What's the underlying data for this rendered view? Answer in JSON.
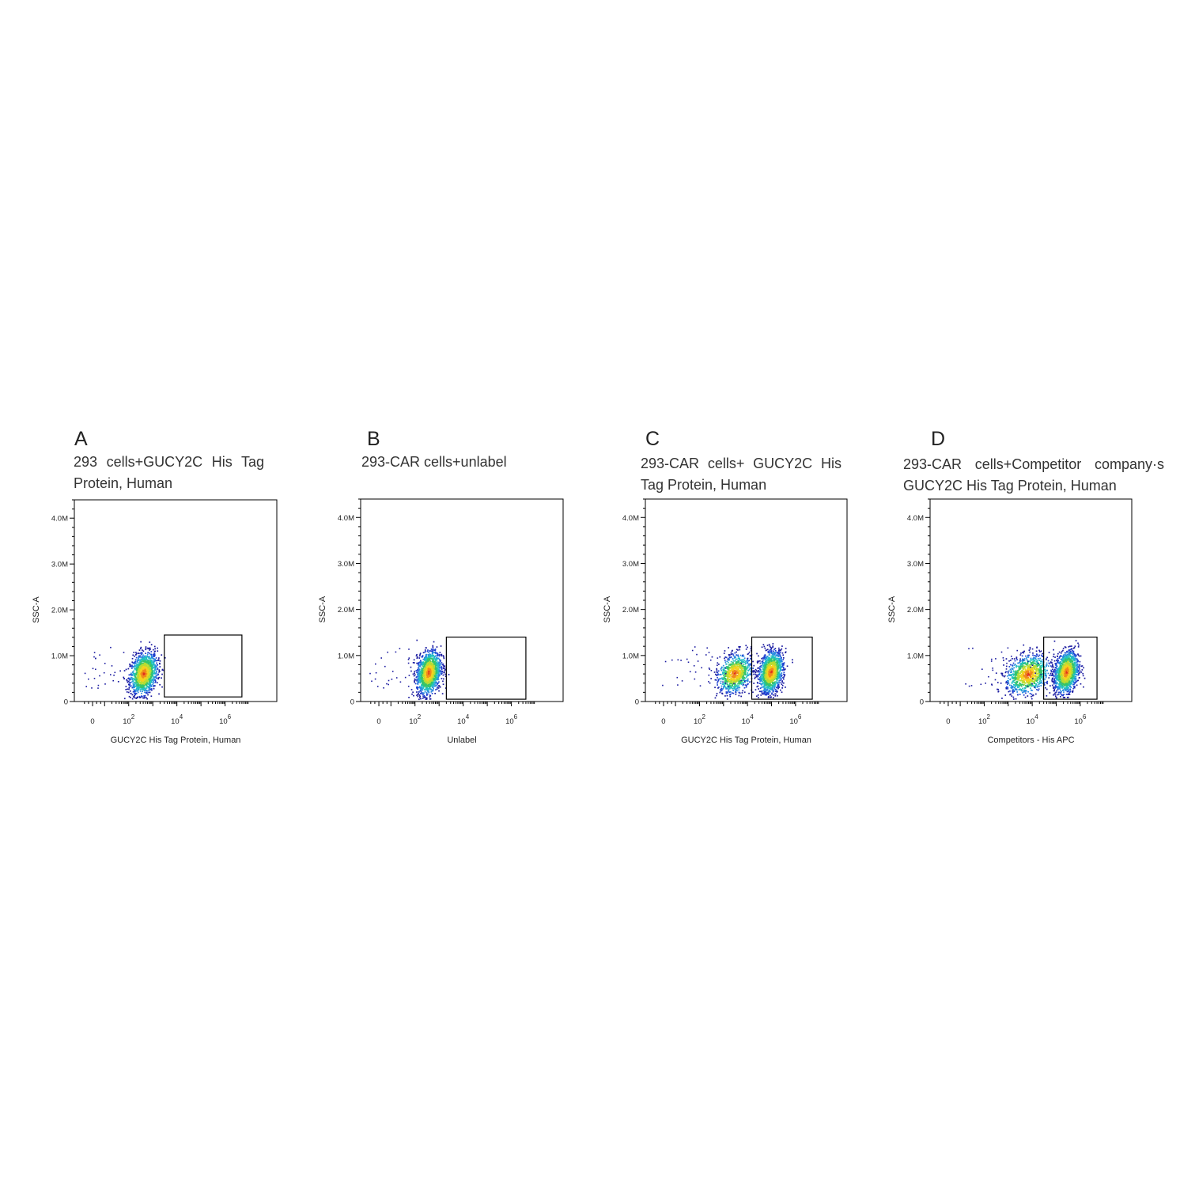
{
  "chart_data": [
    {
      "type": "scatter",
      "panel": "A",
      "title": "293 cells+GUCY2C His Tag Protein, Human",
      "xlabel": "GUCY2C His Tag Protein, Human",
      "ylabel": "SSC-A",
      "xscale": "biexponential",
      "yticks": [
        "0",
        "1.0M",
        "2.0M",
        "3.0M",
        "4.0M"
      ],
      "ylim": [
        0,
        4400000
      ],
      "xticks": [
        {
          "base": "0"
        },
        {
          "base": "10",
          "exp": "2"
        },
        {
          "base": "10",
          "exp": "4"
        },
        {
          "base": "10",
          "exp": "6"
        }
      ],
      "gate": {
        "x_range": [
          3000,
          5000000
        ],
        "y_range": [
          100000,
          1450000
        ]
      },
      "populations": [
        {
          "x_center_log10": 2.6,
          "x_spread_log10": 0.28,
          "y_center": 620000,
          "y_spread": 220000,
          "count": 1400
        }
      ]
    },
    {
      "type": "scatter",
      "panel": "B",
      "title": "293-CAR cells+unlabel",
      "xlabel": "Unlabel",
      "ylabel": "SSC-A",
      "xscale": "biexponential",
      "yticks": [
        "0",
        "1.0M",
        "2.0M",
        "3.0M",
        "4.0M"
      ],
      "ylim": [
        0,
        4400000
      ],
      "xticks": [
        {
          "base": "0"
        },
        {
          "base": "10",
          "exp": "2"
        },
        {
          "base": "10",
          "exp": "4"
        },
        {
          "base": "10",
          "exp": "6"
        }
      ],
      "gate": {
        "x_range": [
          2000,
          4000000
        ],
        "y_range": [
          50000,
          1400000
        ]
      },
      "populations": [
        {
          "x_center_log10": 2.55,
          "x_spread_log10": 0.25,
          "y_center": 640000,
          "y_spread": 230000,
          "count": 1400
        }
      ]
    },
    {
      "type": "scatter",
      "panel": "C",
      "title": "293-CAR cells+ GUCY2C His Tag Protein, Human",
      "xlabel": "GUCY2C His Tag Protein, Human",
      "ylabel": "SSC-A",
      "xscale": "biexponential",
      "yticks": [
        "0",
        "1.0M",
        "2.0M",
        "3.0M",
        "4.0M"
      ],
      "ylim": [
        0,
        4400000
      ],
      "xticks": [
        {
          "base": "0"
        },
        {
          "base": "10",
          "exp": "2"
        },
        {
          "base": "10",
          "exp": "4"
        },
        {
          "base": "10",
          "exp": "6"
        }
      ],
      "gate": {
        "x_range": [
          15000,
          5000000
        ],
        "y_range": [
          50000,
          1400000
        ]
      },
      "populations": [
        {
          "x_center_log10": 3.45,
          "x_spread_log10": 0.35,
          "y_center": 620000,
          "y_spread": 200000,
          "count": 900
        },
        {
          "x_center_log10": 4.95,
          "x_spread_log10": 0.25,
          "y_center": 650000,
          "y_spread": 220000,
          "count": 1300
        }
      ]
    },
    {
      "type": "scatter",
      "panel": "D",
      "title": "293-CAR cells+Competitor company·s GUCY2C His Tag Protein, Human",
      "xlabel": "Competitors - His APC",
      "ylabel": "SSC-A",
      "xscale": "biexponential",
      "yticks": [
        "0",
        "1.0M",
        "2.0M",
        "3.0M",
        "4.0M"
      ],
      "ylim": [
        0,
        4400000
      ],
      "xticks": [
        {
          "base": "0"
        },
        {
          "base": "10",
          "exp": "2"
        },
        {
          "base": "10",
          "exp": "4"
        },
        {
          "base": "10",
          "exp": "6"
        }
      ],
      "gate": {
        "x_range": [
          30000,
          5000000
        ],
        "y_range": [
          50000,
          1400000
        ]
      },
      "populations": [
        {
          "x_center_log10": 3.8,
          "x_spread_log10": 0.45,
          "y_center": 600000,
          "y_spread": 200000,
          "count": 1000
        },
        {
          "x_center_log10": 5.4,
          "x_spread_log10": 0.25,
          "y_center": 650000,
          "y_spread": 220000,
          "count": 1300
        }
      ]
    }
  ],
  "labels": {
    "A": {
      "letter": "A",
      "title": "293 cells+GUCY2C His Tag Protein, Human",
      "xlabel": "GUCY2C His Tag Protein, Human",
      "ylabel": "SSC-A"
    },
    "B": {
      "letter": "B",
      "title": "293-CAR cells+unlabel",
      "xlabel": "Unlabel",
      "ylabel": "SSC-A"
    },
    "C": {
      "letter": "C",
      "title": "293-CAR cells+ GUCY2C His Tag Protein, Human",
      "xlabel": "GUCY2C His Tag Protein, Human",
      "ylabel": "SSC-A"
    },
    "D": {
      "letter": "D",
      "title": "293-CAR cells+Competitor company·s GUCY2C His Tag Protein, Human",
      "xlabel": "Competitors - His APC",
      "ylabel": "SSC-A"
    }
  },
  "colors": {
    "density_scale": [
      "#1a1aa0",
      "#1f3fd0",
      "#2a8be0",
      "#21c0c0",
      "#35c46a",
      "#b8dc33",
      "#f4d21f",
      "#f08a1c",
      "#e0301e"
    ],
    "axis": "#000000",
    "gate": "#000000"
  }
}
